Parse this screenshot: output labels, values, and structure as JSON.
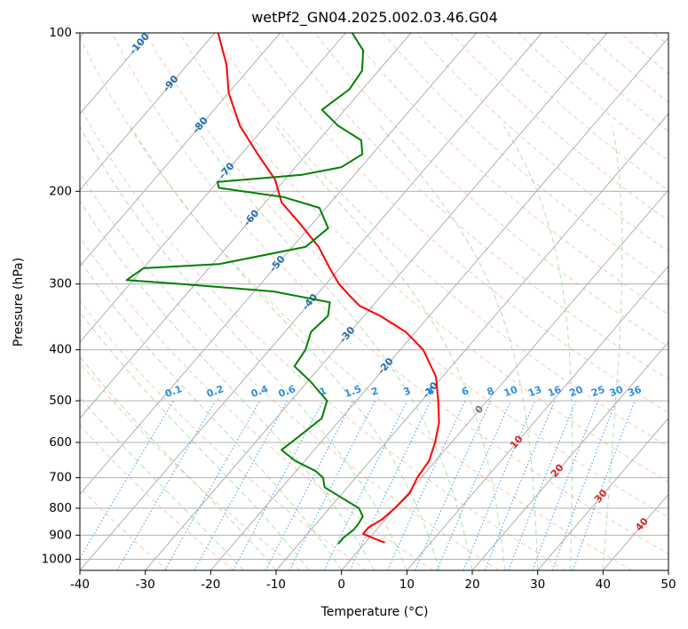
{
  "chart_data": {
    "type": "line",
    "title": "wetPf2_GN04.2025.002.03.46.G04",
    "xlabel": "Temperature (°C)",
    "ylabel": "Pressure (hPa)",
    "xlim": [
      -40,
      50
    ],
    "ylim": [
      1050,
      100
    ],
    "y_scale": "log",
    "skew": true,
    "grid": true,
    "x_ticks": [
      -40,
      -30,
      -20,
      -10,
      0,
      10,
      20,
      30,
      40,
      50
    ],
    "y_ticks": [
      100,
      200,
      300,
      400,
      500,
      600,
      700,
      800,
      900,
      1000
    ],
    "series": [
      {
        "color": "#ff0000",
        "values": [
          {
            "p": 930,
            "t": 3.0
          },
          {
            "p": 915,
            "t": 1.0
          },
          {
            "p": 895,
            "t": -1.5
          },
          {
            "p": 870,
            "t": -1.5
          },
          {
            "p": 840,
            "t": -0.5
          },
          {
            "p": 800,
            "t": 0.0
          },
          {
            "p": 750,
            "t": 0.3
          },
          {
            "p": 700,
            "t": -0.6
          },
          {
            "p": 650,
            "t": -1.0
          },
          {
            "p": 600,
            "t": -2.5
          },
          {
            "p": 550,
            "t": -4.5
          },
          {
            "p": 500,
            "t": -7.5
          },
          {
            "p": 450,
            "t": -11.0
          },
          {
            "p": 400,
            "t": -16.5
          },
          {
            "p": 370,
            "t": -21.5
          },
          {
            "p": 345,
            "t": -27.5
          },
          {
            "p": 330,
            "t": -32.0
          },
          {
            "p": 315,
            "t": -35.0
          },
          {
            "p": 300,
            "t": -38.0
          },
          {
            "p": 280,
            "t": -41.5
          },
          {
            "p": 255,
            "t": -46.0
          },
          {
            "p": 230,
            "t": -52.0
          },
          {
            "p": 210,
            "t": -57.5
          },
          {
            "p": 190,
            "t": -61.5
          },
          {
            "p": 170,
            "t": -67.5
          },
          {
            "p": 150,
            "t": -74.0
          },
          {
            "p": 130,
            "t": -80.0
          },
          {
            "p": 115,
            "t": -84.0
          },
          {
            "p": 100,
            "t": -89.5
          }
        ]
      },
      {
        "color": "#008000",
        "values": [
          {
            "p": 935,
            "t": -4.0
          },
          {
            "p": 910,
            "t": -4.0
          },
          {
            "p": 880,
            "t": -3.5
          },
          {
            "p": 860,
            "t": -3.5
          },
          {
            "p": 830,
            "t": -3.8
          },
          {
            "p": 800,
            "t": -5.5
          },
          {
            "p": 760,
            "t": -10.0
          },
          {
            "p": 730,
            "t": -13.5
          },
          {
            "p": 700,
            "t": -15.0
          },
          {
            "p": 680,
            "t": -17.0
          },
          {
            "p": 650,
            "t": -21.5
          },
          {
            "p": 620,
            "t": -25.0
          },
          {
            "p": 580,
            "t": -24.0
          },
          {
            "p": 540,
            "t": -23.0
          },
          {
            "p": 500,
            "t": -24.5
          },
          {
            "p": 460,
            "t": -29.5
          },
          {
            "p": 430,
            "t": -34.0
          },
          {
            "p": 400,
            "t": -34.5
          },
          {
            "p": 370,
            "t": -36.0
          },
          {
            "p": 345,
            "t": -35.5
          },
          {
            "p": 325,
            "t": -37.0
          },
          {
            "p": 310,
            "t": -47.0
          },
          {
            "p": 300,
            "t": -62.0
          },
          {
            "p": 295,
            "t": -71.0
          },
          {
            "p": 280,
            "t": -70.0
          },
          {
            "p": 275,
            "t": -59.0
          },
          {
            "p": 255,
            "t": -48.0
          },
          {
            "p": 235,
            "t": -47.0
          },
          {
            "p": 215,
            "t": -51.0
          },
          {
            "p": 205,
            "t": -58.0
          },
          {
            "p": 197,
            "t": -69.0
          },
          {
            "p": 192,
            "t": -70.0
          },
          {
            "p": 186,
            "t": -58.0
          },
          {
            "p": 180,
            "t": -53.0
          },
          {
            "p": 170,
            "t": -51.5
          },
          {
            "p": 160,
            "t": -53.5
          },
          {
            "p": 150,
            "t": -59.0
          },
          {
            "p": 140,
            "t": -63.5
          },
          {
            "p": 128,
            "t": -62.0
          },
          {
            "p": 118,
            "t": -62.5
          },
          {
            "p": 108,
            "t": -65.0
          },
          {
            "p": 100,
            "t": -69.0
          }
        ]
      }
    ],
    "isotherm_labels": [
      "-100",
      "-90",
      "-80",
      "-70",
      "-60",
      "-50",
      "-40",
      "-30",
      "-20",
      "-10",
      "0",
      "10",
      "20",
      "30",
      "40"
    ],
    "mixing_ratio_labels": [
      "0.1",
      "0.2",
      "0.4",
      "0.6",
      "1",
      "1.5",
      "2",
      "3",
      "4",
      "6",
      "8",
      "10",
      "13",
      "16",
      "20",
      "25",
      "30",
      "36"
    ],
    "colors": {
      "temperature": "#ff0000",
      "dewpoint": "#008000",
      "dry_adiabat": "#f4a582",
      "moist_adiabat": "#74c476",
      "mixing_ratio": "#1e88e5",
      "isotherm": "#1f6fb0",
      "warm_isotherm": "#d62728"
    }
  }
}
